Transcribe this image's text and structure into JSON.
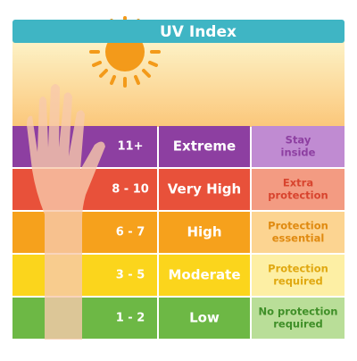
{
  "title": "UV Index",
  "rows": [
    {
      "range": "11+",
      "level": "Extreme",
      "advice": [
        "Stay",
        "inside"
      ]
    },
    {
      "range": "8 - 10",
      "level": "Very High",
      "advice": [
        "Extra",
        "protection"
      ]
    },
    {
      "range": "6 - 7",
      "level": "High",
      "advice": [
        "Protection",
        "essential"
      ]
    },
    {
      "range": "3 - 5",
      "level": "Moderate",
      "advice": [
        "Protection",
        "required"
      ]
    },
    {
      "range": "1 - 2",
      "level": "Low",
      "advice": [
        "No protection",
        "required"
      ]
    }
  ]
}
